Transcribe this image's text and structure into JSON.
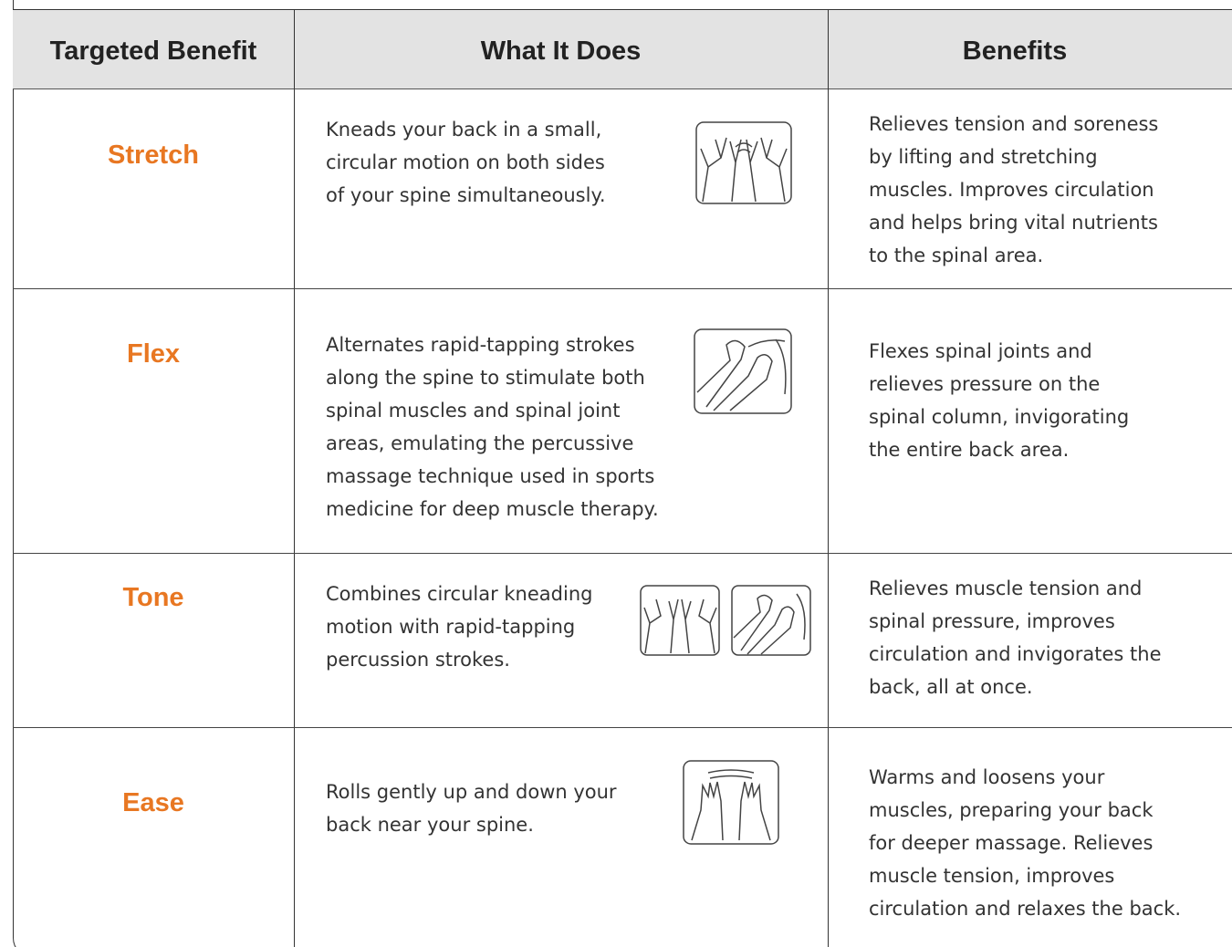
{
  "table": {
    "header": [
      "Targeted Benefit",
      "What It Does",
      "Benefits"
    ],
    "rows": [
      {
        "name": "Stretch",
        "what_it_does": [
          "Kneads your back in a small,",
          "circular motion on both sides",
          "of your spine simultaneously."
        ],
        "benefits": [
          "Relieves tension and soreness",
          "by lifting and stretching",
          "muscles. Improves circulation",
          "and helps bring vital nutrients",
          "to the spinal area."
        ]
      },
      {
        "name": "Flex",
        "what_it_does": [
          "Alternates rapid-tapping strokes",
          "along the spine to stimulate both",
          "spinal muscles and spinal joint",
          "areas, emulating the percussive",
          "massage technique used in sports",
          "medicine for deep muscle therapy."
        ],
        "benefits": [
          "Flexes spinal joints and",
          "relieves pressure on the",
          "spinal column, invigorating",
          "the entire back area."
        ]
      },
      {
        "name": "Tone",
        "what_it_does": [
          "Combines circular kneading",
          "motion with rapid-tapping",
          "percussion strokes."
        ],
        "benefits": [
          "Relieves muscle tension and",
          "spinal pressure, improves",
          "circulation and invigorates the",
          "back, all at once."
        ]
      },
      {
        "name": "Ease",
        "what_it_does": [
          "Rolls gently up and down your",
          "back near your spine."
        ],
        "benefits": [
          "Warms and loosens your",
          "muscles, preparing your back",
          "for deeper massage. Relieves",
          "muscle tension, improves",
          "circulation and relaxes the back."
        ]
      }
    ]
  }
}
